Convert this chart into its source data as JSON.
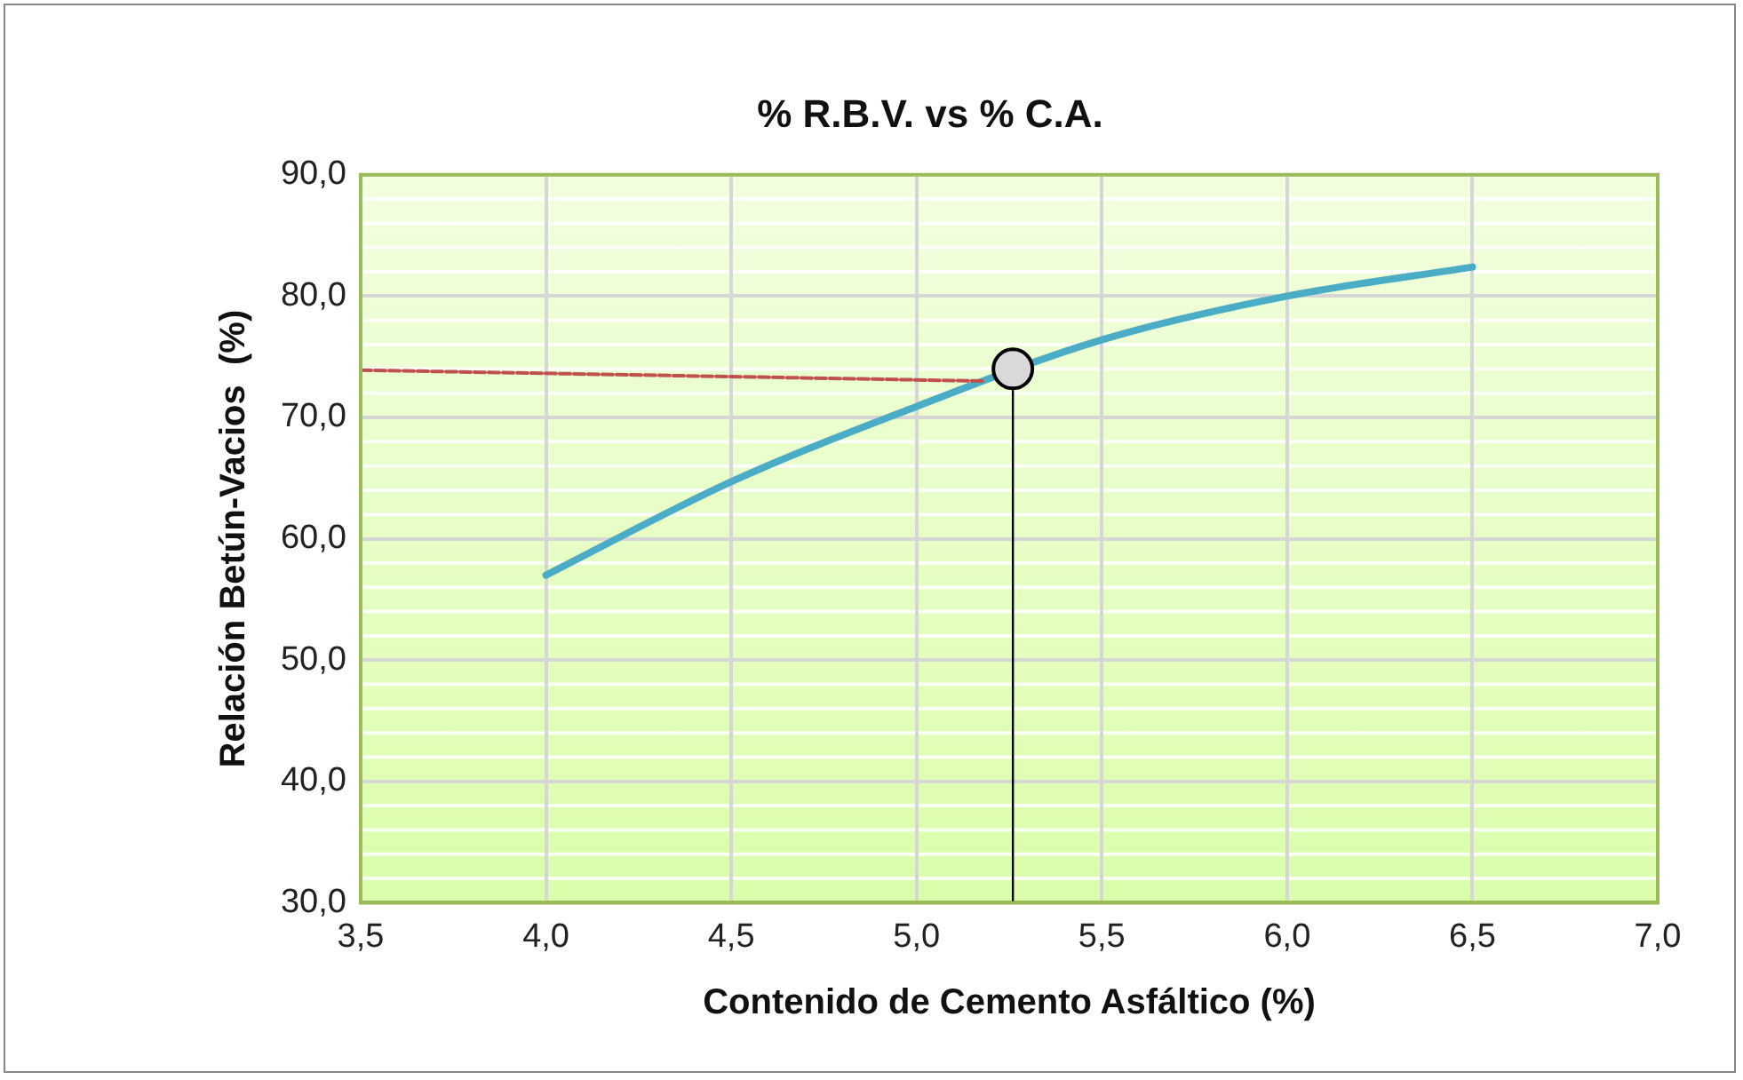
{
  "chart_data": {
    "type": "line",
    "title": "% R.B.V. vs % C.A.",
    "xlabel": "Contenido de Cemento Asfáltico (%)",
    "ylabel": "Relación Betún-Vacios  (%)",
    "xlim": [
      3.5,
      7.0
    ],
    "ylim": [
      30,
      90
    ],
    "xticks": [
      {
        "value": 3.5,
        "label": "3,5"
      },
      {
        "value": 4,
        "label": "4,0"
      },
      {
        "value": 4.5,
        "label": "4,5"
      },
      {
        "value": 5,
        "label": "5,0"
      },
      {
        "value": 5.5,
        "label": "5,5"
      },
      {
        "value": 6,
        "label": "6,0"
      },
      {
        "value": 6.5,
        "label": "6,5"
      },
      {
        "value": 7,
        "label": "7,0"
      }
    ],
    "yticks": [
      {
        "value": 30,
        "label": "30,0"
      },
      {
        "value": 40,
        "label": "40,0"
      },
      {
        "value": 50,
        "label": "50,0"
      },
      {
        "value": 60,
        "label": "60,0"
      },
      {
        "value": 70,
        "label": "70,0"
      },
      {
        "value": 80,
        "label": "80,0"
      },
      {
        "value": 90,
        "label": "90,0"
      }
    ],
    "grid": true,
    "legend": false,
    "marker": "none",
    "series": [
      {
        "type": "line",
        "color": "#4bacc6",
        "x": [
          4.0,
          4.5,
          5.0,
          5.5,
          6.0,
          6.5
        ],
        "values": [
          57.0,
          64.7,
          70.9,
          76.4,
          80.0,
          82.4
        ]
      },
      {
        "type": "line",
        "color": "#c0504d",
        "line_style": "dashed",
        "x": [
          3.5,
          5.18
        ],
        "values": [
          73.9,
          73.0
        ]
      },
      {
        "type": "line",
        "color": "#000000",
        "x": [
          5.26,
          5.26
        ],
        "values": [
          30,
          72.2
        ]
      },
      {
        "type": "scatter",
        "color": "#d9d9d9",
        "marker": "circle",
        "x": [
          5.26
        ],
        "values": [
          74.0
        ]
      }
    ]
  }
}
